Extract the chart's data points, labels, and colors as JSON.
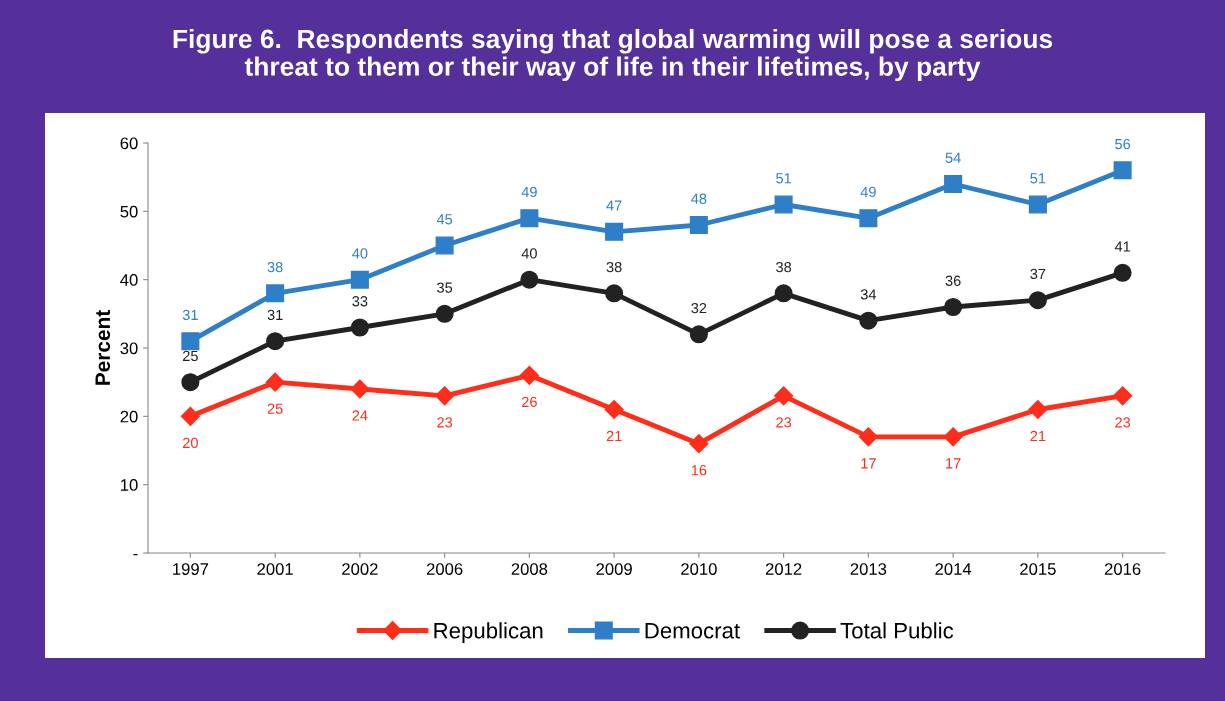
{
  "chart_data": {
    "type": "line",
    "title": "Figure 6.  Respondents saying that global warming will pose a serious\nthreat to them or their way of life in their lifetimes, by party",
    "ylabel": "Percent",
    "categories": [
      "1997",
      "2001",
      "2002",
      "2006",
      "2008",
      "2009",
      "2010",
      "2012",
      "2013",
      "2014",
      "2015",
      "2016"
    ],
    "series": [
      {
        "name": "Republican",
        "color": "#ff2d1a",
        "marker": "diamond",
        "values": [
          20,
          25,
          24,
          23,
          26,
          21,
          16,
          23,
          17,
          17,
          21,
          23
        ]
      },
      {
        "name": "Democrat",
        "color": "#2f7fc8",
        "marker": "square",
        "values": [
          31,
          38,
          40,
          45,
          49,
          47,
          48,
          51,
          49,
          54,
          51,
          56
        ]
      },
      {
        "name": "Total Public",
        "color": "#222222",
        "marker": "circle",
        "values": [
          25,
          31,
          33,
          35,
          40,
          38,
          32,
          38,
          34,
          36,
          37,
          41
        ]
      }
    ],
    "ylim": [
      0,
      60
    ],
    "yticks": [
      {
        "value": 0,
        "label": "-"
      },
      10,
      20,
      30,
      40,
      50,
      60
    ],
    "data_labels": true,
    "grid": false,
    "legend": "bottom",
    "line_style": "solid"
  }
}
